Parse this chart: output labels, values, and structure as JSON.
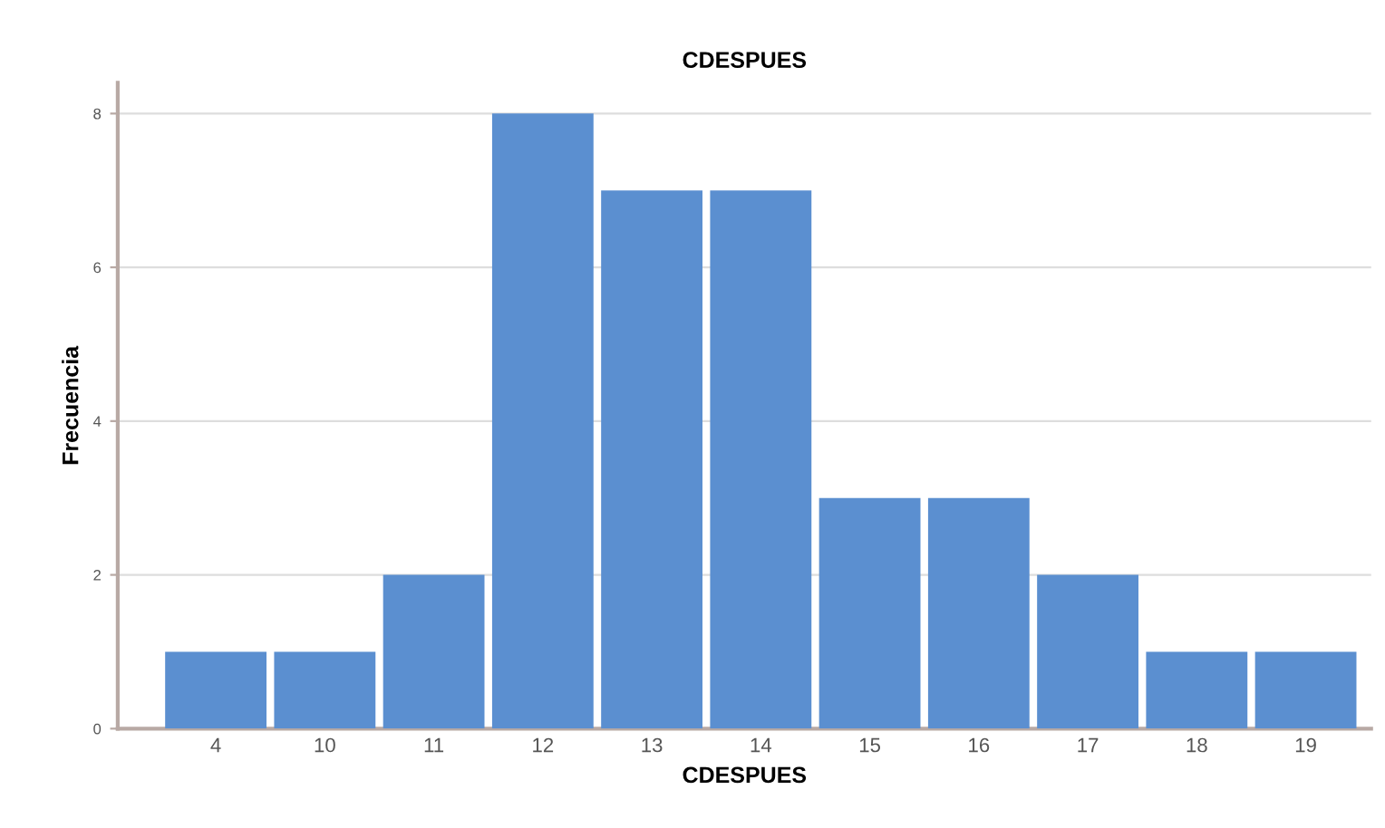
{
  "chart_data": {
    "type": "bar",
    "title": "CDESPUES",
    "xlabel": "CDESPUES",
    "ylabel": "Frecuencia",
    "categories": [
      "4",
      "10",
      "11",
      "12",
      "13",
      "14",
      "15",
      "16",
      "17",
      "18",
      "19"
    ],
    "values": [
      1,
      1,
      2,
      8,
      7,
      7,
      3,
      3,
      2,
      1,
      1
    ],
    "color": "#5b8fd0",
    "ylim": [
      0,
      8.4
    ],
    "yticks": [
      0,
      2,
      4,
      6,
      8
    ],
    "grid": "y"
  }
}
